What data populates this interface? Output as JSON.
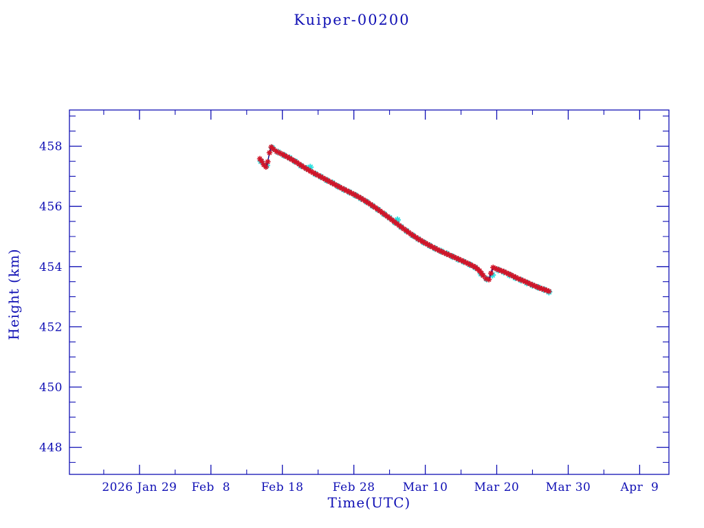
{
  "page": {
    "background": "#ffffff"
  },
  "chart_data": {
    "type": "line",
    "title": "Kuiper-00200",
    "xlabel": "Time(UTC)",
    "ylabel": "Height (km)",
    "grid": false,
    "legend": "none",
    "colors": {
      "axis": "#0f0fb4",
      "text": "#0f0fb4",
      "measured_marker": "#d01428",
      "smoothed_marker": "#2ee0e0",
      "connect_line": "#00008b"
    },
    "x_axis": {
      "unit": "days since 2026 Jan 29 (UTC)",
      "lim_days": [
        -9.8,
        74.1
      ],
      "major_ticks": [
        {
          "day": 0,
          "label": "2026 Jan 29"
        },
        {
          "day": 10,
          "label": "Feb  8"
        },
        {
          "day": 20,
          "label": "Feb 18"
        },
        {
          "day": 30,
          "label": "Feb 28"
        },
        {
          "day": 40,
          "label": "Mar 10"
        },
        {
          "day": 50,
          "label": "Mar 20"
        },
        {
          "day": 60,
          "label": "Mar 30"
        },
        {
          "day": 70,
          "label": "Apr  9"
        }
      ],
      "minor_tick_days": [
        -5,
        5,
        15,
        25,
        35,
        45,
        55,
        65
      ]
    },
    "y_axis": {
      "lim_km": [
        447.1,
        459.2
      ],
      "major_ticks": [
        448,
        450,
        452,
        454,
        456,
        458
      ],
      "minor_step_km": 0.5
    },
    "series": [
      {
        "name": "smoothed-height",
        "marker": "asterisk",
        "color_key": "smoothed_marker",
        "connect_line": false,
        "points": [
          [
            17.0,
            457.5
          ],
          [
            17.8,
            457.36
          ],
          [
            18.6,
            457.94
          ],
          [
            19.4,
            457.8
          ],
          [
            20.2,
            457.7
          ],
          [
            21.0,
            457.61
          ],
          [
            21.8,
            457.49
          ],
          [
            22.6,
            457.35
          ],
          [
            23.4,
            457.26
          ],
          [
            23.9,
            457.3
          ],
          [
            24.6,
            457.08
          ],
          [
            25.4,
            456.98
          ],
          [
            26.2,
            456.87
          ],
          [
            27.0,
            456.78
          ],
          [
            27.8,
            456.66
          ],
          [
            28.6,
            456.56
          ],
          [
            29.4,
            456.47
          ],
          [
            30.2,
            456.37
          ],
          [
            31.0,
            456.26
          ],
          [
            31.8,
            456.15
          ],
          [
            32.6,
            456.02
          ],
          [
            33.4,
            455.89
          ],
          [
            34.2,
            455.75
          ],
          [
            35.0,
            455.62
          ],
          [
            35.8,
            455.46
          ],
          [
            36.1,
            455.55
          ],
          [
            36.6,
            455.32
          ],
          [
            37.4,
            455.18
          ],
          [
            38.2,
            455.04
          ],
          [
            39.0,
            454.92
          ],
          [
            39.8,
            454.8
          ],
          [
            40.6,
            454.7
          ],
          [
            41.4,
            454.6
          ],
          [
            42.2,
            454.51
          ],
          [
            43.0,
            454.43
          ],
          [
            43.8,
            454.33
          ],
          [
            44.6,
            454.24
          ],
          [
            45.4,
            454.16
          ],
          [
            46.2,
            454.07
          ],
          [
            47.0,
            453.97
          ],
          [
            47.8,
            453.76
          ],
          [
            48.6,
            453.59
          ],
          [
            49.4,
            453.72
          ],
          [
            50.2,
            453.89
          ],
          [
            51.0,
            453.82
          ],
          [
            51.8,
            453.72
          ],
          [
            52.6,
            453.63
          ],
          [
            53.4,
            453.55
          ],
          [
            54.2,
            453.46
          ],
          [
            55.0,
            453.38
          ],
          [
            55.8,
            453.31
          ],
          [
            56.6,
            453.24
          ],
          [
            57.3,
            453.16
          ]
        ]
      },
      {
        "name": "measured-height",
        "marker": "asterisk",
        "color_key": "measured_marker",
        "connect_line": true,
        "marker_density_per_day": 3,
        "points": [
          [
            16.85,
            457.58
          ],
          [
            17.1,
            457.5
          ],
          [
            17.4,
            457.38
          ],
          [
            17.7,
            457.31
          ],
          [
            17.95,
            457.48
          ],
          [
            18.2,
            457.78
          ],
          [
            18.45,
            457.97
          ],
          [
            18.75,
            457.9
          ],
          [
            19.2,
            457.82
          ],
          [
            20.0,
            457.73
          ],
          [
            21.0,
            457.6
          ],
          [
            22.0,
            457.46
          ],
          [
            23.0,
            457.3
          ],
          [
            24.0,
            457.16
          ],
          [
            25.0,
            457.03
          ],
          [
            26.0,
            456.9
          ],
          [
            27.0,
            456.77
          ],
          [
            28.0,
            456.64
          ],
          [
            29.0,
            456.52
          ],
          [
            30.0,
            456.4
          ],
          [
            31.0,
            456.27
          ],
          [
            32.0,
            456.12
          ],
          [
            33.0,
            455.96
          ],
          [
            34.0,
            455.79
          ],
          [
            35.0,
            455.61
          ],
          [
            36.0,
            455.43
          ],
          [
            37.0,
            455.25
          ],
          [
            38.0,
            455.08
          ],
          [
            39.0,
            454.92
          ],
          [
            40.0,
            454.78
          ],
          [
            41.0,
            454.65
          ],
          [
            42.0,
            454.53
          ],
          [
            43.0,
            454.42
          ],
          [
            44.0,
            454.32
          ],
          [
            45.0,
            454.21
          ],
          [
            46.0,
            454.1
          ],
          [
            47.0,
            453.98
          ],
          [
            47.6,
            453.86
          ],
          [
            48.1,
            453.7
          ],
          [
            48.5,
            453.6
          ],
          [
            48.9,
            453.57
          ],
          [
            49.2,
            453.78
          ],
          [
            49.5,
            453.97
          ],
          [
            50.0,
            453.92
          ],
          [
            51.0,
            453.83
          ],
          [
            52.0,
            453.72
          ],
          [
            53.0,
            453.6
          ],
          [
            54.0,
            453.5
          ],
          [
            55.0,
            453.39
          ],
          [
            56.0,
            453.29
          ],
          [
            57.0,
            453.21
          ],
          [
            57.3,
            453.18
          ]
        ]
      }
    ]
  }
}
